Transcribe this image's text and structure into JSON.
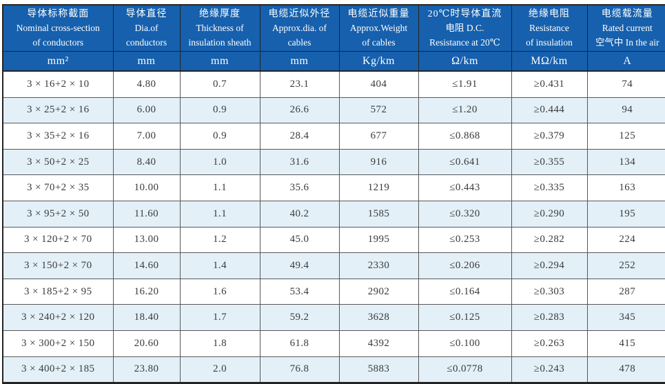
{
  "colors": {
    "header_bg": "#1660ad",
    "header_text": "#ffffff",
    "row_bg": "#ffffff",
    "row_alt_bg": "#e3f0f8",
    "border_dark": "#242424",
    "border_inner": "#575757",
    "cell_text": "#3a3a3a"
  },
  "table": {
    "columns": [
      {
        "lines": [
          "导体标称截面",
          "Nominal cross-section",
          "of conductors"
        ],
        "unit": "mm²"
      },
      {
        "lines": [
          "导体直径",
          "Dia.of",
          "conductors"
        ],
        "unit": "mm"
      },
      {
        "lines": [
          "绝缘厚度",
          "Thickness of",
          "insulation sheath"
        ],
        "unit": "mm"
      },
      {
        "lines": [
          "电缆近似外径",
          "Approx.dia. of",
          "cables"
        ],
        "unit": "mm"
      },
      {
        "lines": [
          "电缆近似重量",
          "Approx.Weight",
          "of cables"
        ],
        "unit": "Kg/km"
      },
      {
        "lines": [
          "20℃时导体直流",
          "电阻 D.C.",
          "Resistance at 20℃"
        ],
        "unit": "Ω/km"
      },
      {
        "lines": [
          "绝缘电阻",
          "Resistance",
          "of insulation"
        ],
        "unit": "MΩ/km"
      },
      {
        "lines": [
          "电缆载流量",
          "Rated current",
          "空气中 In the air"
        ],
        "unit": "A"
      }
    ],
    "rows": [
      [
        "3 × 16+2 × 10",
        "4.80",
        "0.7",
        "23.1",
        "404",
        "≤1.91",
        "≥0.431",
        "74"
      ],
      [
        "3 × 25+2 × 16",
        "6.00",
        "0.9",
        "26.6",
        "572",
        "≤1.20",
        "≥0.444",
        "94"
      ],
      [
        "3 × 35+2 × 16",
        "7.00",
        "0.9",
        "28.4",
        "677",
        "≤0.868",
        "≥0.379",
        "125"
      ],
      [
        "3 × 50+2 × 25",
        "8.40",
        "1.0",
        "31.6",
        "916",
        "≤0.641",
        "≥0.355",
        "134"
      ],
      [
        "3 × 70+2 × 35",
        "10.00",
        "1.1",
        "35.6",
        "1219",
        "≤0.443",
        "≥0.335",
        "163"
      ],
      [
        "3 × 95+2 × 50",
        "11.60",
        "1.1",
        "40.2",
        "1585",
        "≤0.320",
        "≥0.290",
        "195"
      ],
      [
        "3 × 120+2 × 70",
        "13.00",
        "1.2",
        "45.0",
        "1995",
        "≤0.253",
        "≥0.282",
        "224"
      ],
      [
        "3 × 150+2 × 70",
        "14.60",
        "1.4",
        "49.4",
        "2330",
        "≤0.206",
        "≥0.294",
        "252"
      ],
      [
        "3 × 185+2 × 95",
        "16.20",
        "1.6",
        "53.4",
        "2902",
        "≤0.164",
        "≥0.303",
        "287"
      ],
      [
        "3 × 240+2 × 120",
        "18.40",
        "1.7",
        "59.2",
        "3628",
        "≤0.125",
        "≥0.283",
        "345"
      ],
      [
        "3 × 300+2 × 150",
        "20.60",
        "1.8",
        "61.8",
        "4392",
        "≤0.100",
        "≥0.263",
        "415"
      ],
      [
        "3 × 400+2 × 185",
        "23.80",
        "2.0",
        "76.8",
        "5883",
        "≤0.0778",
        "≥0.243",
        "478"
      ]
    ]
  }
}
